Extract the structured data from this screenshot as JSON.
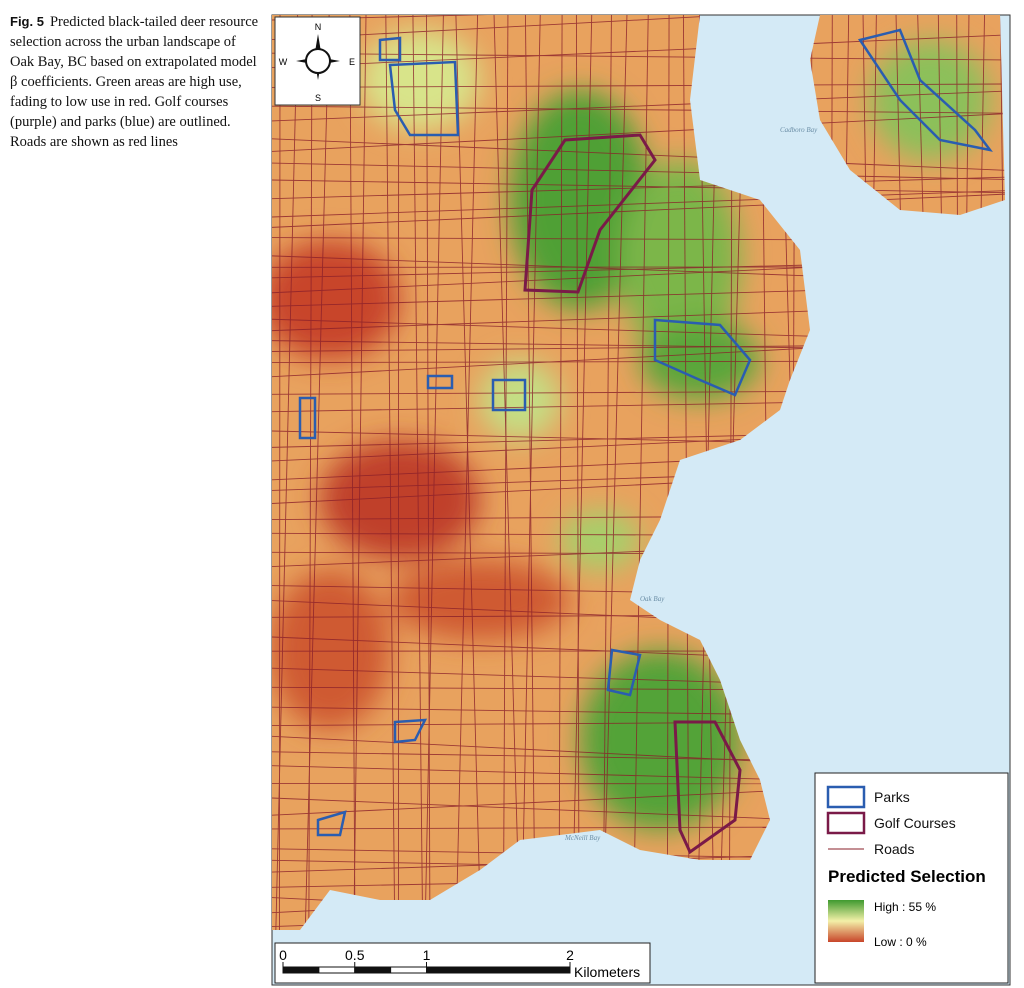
{
  "figure": {
    "label": "Fig. 5",
    "caption": "Predicted black-tailed deer resource selection across the urban landscape of Oak Bay, BC based on extrapolated model β coefficients. Green areas are high use, fading to low use in red. Golf courses (purple) and parks (blue) are outlined. Roads are shown as red lines"
  },
  "compass": {
    "north": "N",
    "east": "E",
    "south": "S",
    "west": "W"
  },
  "places": [
    "Cadboro Bay",
    "Oak Bay",
    "McNeill Bay"
  ],
  "legend": {
    "parks": "Parks",
    "golf": "Golf Courses",
    "roads": "Roads",
    "title": "Predicted Selection",
    "high": "High : 55 %",
    "low": "Low : 0 %"
  },
  "scale_bar": {
    "ticks": [
      0,
      0.5,
      1,
      2
    ],
    "unit": "Kilometers"
  }
}
